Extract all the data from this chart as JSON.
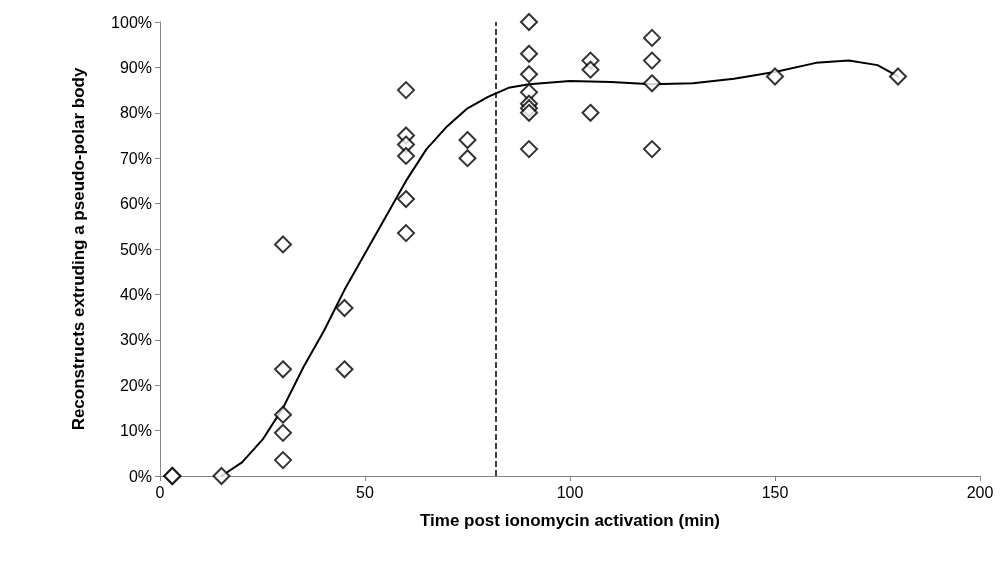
{
  "chart_data": {
    "type": "scatter",
    "xlabel": "Time post ionomycin activation (min)",
    "ylabel": "Reconstructs extruding a pseudo-polar body",
    "xlim": [
      0,
      200
    ],
    "xticks": [
      0,
      50,
      100,
      150,
      200
    ],
    "ylim": [
      0,
      100
    ],
    "yticks": [
      {
        "value": 0,
        "label": "0%"
      },
      {
        "value": 10,
        "label": "10%"
      },
      {
        "value": 20,
        "label": "20%"
      },
      {
        "value": 30,
        "label": "30%"
      },
      {
        "value": 40,
        "label": "40%"
      },
      {
        "value": 50,
        "label": "50%"
      },
      {
        "value": 60,
        "label": "60%"
      },
      {
        "value": 70,
        "label": "70%"
      },
      {
        "value": 80,
        "label": "80%"
      },
      {
        "value": 90,
        "label": "90%"
      },
      {
        "value": 100,
        "label": "100%"
      }
    ],
    "grid": false,
    "series": [
      {
        "marker": "diamond",
        "color": "#000000",
        "x": [
          3,
          3,
          15,
          30,
          30,
          30,
          30,
          30,
          45,
          45,
          60,
          60,
          60,
          60,
          60,
          60,
          75,
          75,
          90,
          90,
          90,
          90,
          90,
          90,
          90,
          90,
          105,
          105,
          105,
          120,
          120,
          120,
          120,
          150,
          180
        ],
        "values": [
          0,
          0,
          0,
          51,
          23.5,
          13.5,
          9.5,
          3.5,
          37,
          23.5,
          85,
          75,
          73,
          70.5,
          61,
          53.5,
          74,
          70,
          100,
          93,
          88.5,
          84.5,
          82,
          81,
          80,
          72,
          91.5,
          89.5,
          80,
          96.5,
          91.5,
          86.5,
          72,
          88,
          88
        ]
      },
      {
        "type": "line",
        "marker": "none",
        "line_style": "solid",
        "color": "#000000",
        "x": [
          15,
          20,
          25,
          30,
          35,
          40,
          45,
          50,
          55,
          60,
          65,
          70,
          75,
          80,
          85,
          90,
          100,
          110,
          120,
          130,
          140,
          150,
          160,
          168,
          175,
          180
        ],
        "values": [
          0,
          3,
          8,
          15,
          24,
          32,
          41,
          49,
          57,
          65,
          72,
          77,
          81,
          83.5,
          85.5,
          86.3,
          87,
          86.8,
          86.3,
          86.5,
          87.5,
          89,
          91,
          91.5,
          90.5,
          88
        ]
      }
    ],
    "ref_lines": [
      {
        "axis": "x",
        "value": 82,
        "line_style": "dashed",
        "color": "#000000"
      }
    ]
  }
}
